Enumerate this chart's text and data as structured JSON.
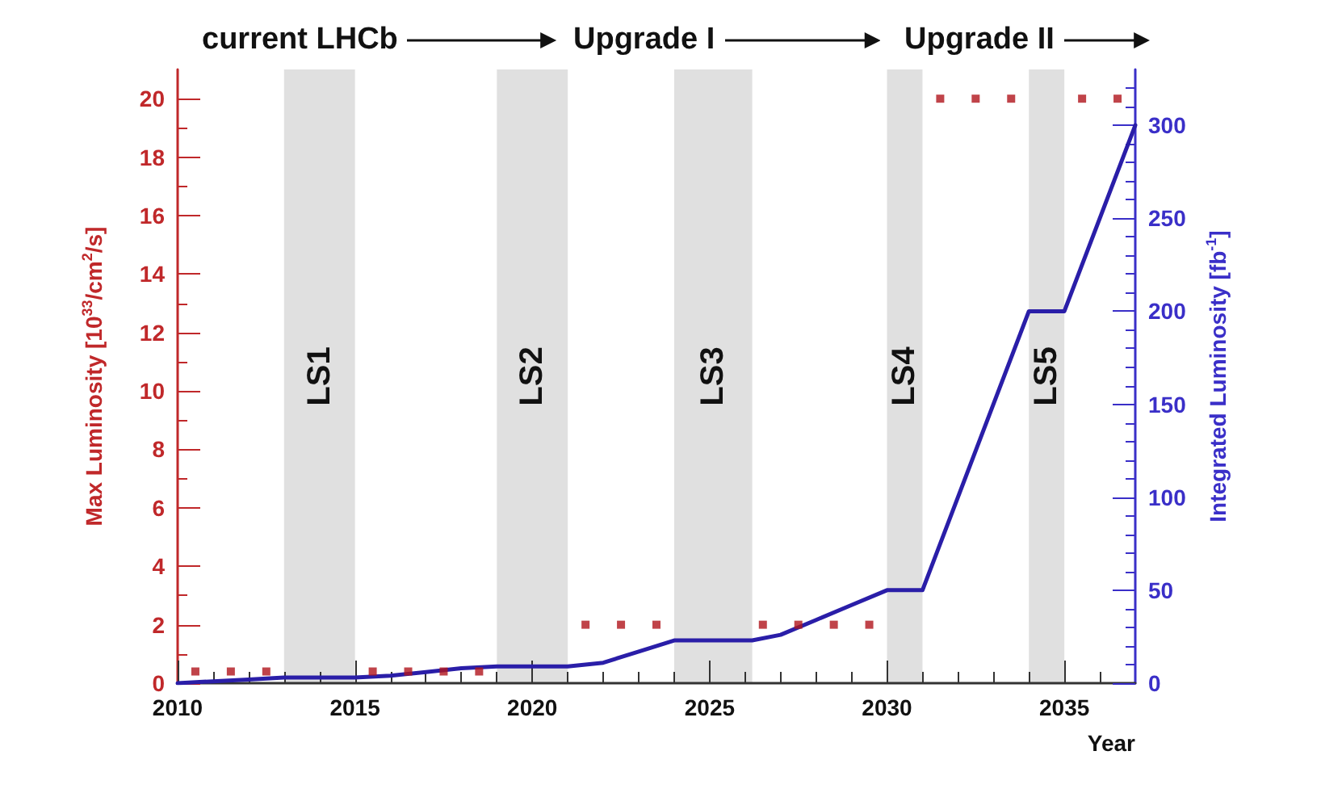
{
  "chart_data": {
    "type": "line",
    "ylabel": "Max Luminosity [10$^{33}$/cm$^{2}$/s]",
    "y2label": "Integrated Luminosity [fb$^{-1}$]",
    "xlabel": "Year",
    "annotations": [
      "current LHCb",
      "Upgrade I",
      "Upgrade II"
    ],
    "xlim": [
      2010,
      2037
    ],
    "xticks": [
      2010,
      2015,
      2020,
      2025,
      2030,
      2035
    ],
    "ylim": [
      0,
      21
    ],
    "yticks": [
      0,
      2,
      4,
      6,
      8,
      10,
      12,
      14,
      16,
      18,
      20
    ],
    "y2lim": [
      0,
      330
    ],
    "y2ticks": [
      0,
      50,
      100,
      150,
      200,
      250,
      300
    ],
    "bands": [
      {
        "axis": "x",
        "from": 2013,
        "to": 2015,
        "label": "LS1",
        "color": "#e0e0e0"
      },
      {
        "axis": "x",
        "from": 2019,
        "to": 2021,
        "label": "LS2",
        "color": "#e0e0e0"
      },
      {
        "axis": "x",
        "from": 2024,
        "to": 2026.2,
        "label": "LS3",
        "color": "#e0e0e0"
      },
      {
        "axis": "x",
        "from": 2030,
        "to": 2031,
        "label": "LS4",
        "color": "#e0e0e0"
      },
      {
        "axis": "x",
        "from": 2034,
        "to": 2035,
        "label": "LS5",
        "color": "#e0e0e0"
      }
    ],
    "series": [
      {
        "type": "scatter",
        "marker": "square",
        "color": "#b0141c",
        "x": [
          2010.5,
          2011.5,
          2012.5,
          2015.5,
          2016.5,
          2017.5,
          2018.5,
          2021.5,
          2022.5,
          2023.5,
          2026.5,
          2027.5,
          2028.5,
          2029.5,
          2031.5,
          2032.5,
          2033.5,
          2035.5,
          2036.5
        ],
        "values": [
          0.4,
          0.4,
          0.4,
          0.4,
          0.4,
          0.4,
          0.4,
          2,
          2,
          2,
          2,
          2,
          2,
          2,
          20,
          20,
          20,
          20,
          20
        ]
      },
      {
        "type": "line",
        "axis": "y2",
        "marker": "none",
        "line_style": "solid",
        "color": "#2a1ea8",
        "x": [
          2010,
          2011,
          2012,
          2013,
          2015,
          2016,
          2017,
          2018,
          2019,
          2021,
          2022,
          2023,
          2024,
          2026.2,
          2027,
          2028,
          2029,
          2030,
          2031,
          2034,
          2035,
          2037
        ],
        "values": [
          0,
          1,
          2,
          3,
          3,
          4,
          6,
          8,
          9,
          9,
          11,
          17,
          23,
          23,
          26,
          34,
          42,
          50,
          50,
          200,
          200,
          300
        ]
      }
    ]
  }
}
